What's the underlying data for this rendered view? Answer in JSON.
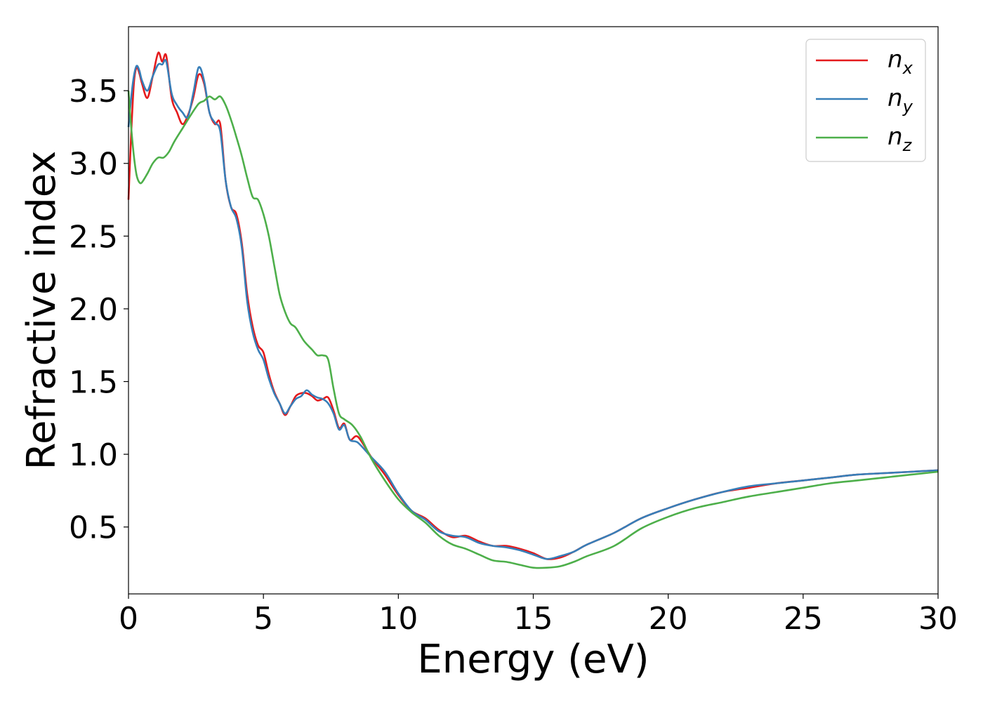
{
  "chart_data": {
    "type": "line",
    "xlabel": "Energy (eV)",
    "ylabel": "Refractive index",
    "xlim": [
      0,
      30
    ],
    "ylim": [
      0.04,
      3.94
    ],
    "xticks": [
      0,
      5,
      10,
      15,
      20,
      25,
      30
    ],
    "xtick_labels": [
      "0",
      "5",
      "10",
      "15",
      "20",
      "25",
      "30"
    ],
    "yticks": [
      0.5,
      1.0,
      1.5,
      2.0,
      2.5,
      3.0,
      3.5
    ],
    "ytick_labels": [
      "0.5",
      "1.0",
      "1.5",
      "2.0",
      "2.5",
      "3.0",
      "3.5"
    ],
    "grid": false,
    "legend_position": "top-right",
    "series": [
      {
        "name": "n_x",
        "label_main": "n",
        "label_sub": "x",
        "color": "#e41a1c",
        "x": [
          0,
          0.1,
          0.2,
          0.3,
          0.4,
          0.5,
          0.7,
          0.9,
          1.1,
          1.25,
          1.4,
          1.6,
          1.8,
          2.0,
          2.2,
          2.4,
          2.6,
          2.8,
          3.0,
          3.2,
          3.4,
          3.6,
          3.8,
          4.0,
          4.2,
          4.4,
          4.6,
          4.8,
          5.0,
          5.2,
          5.4,
          5.6,
          5.8,
          6.0,
          6.2,
          6.4,
          6.6,
          6.8,
          7.0,
          7.2,
          7.4,
          7.6,
          7.8,
          8.0,
          8.2,
          8.5,
          9.0,
          9.5,
          10.0,
          10.5,
          11.0,
          11.5,
          12.0,
          12.5,
          13.0,
          13.5,
          14.0,
          14.5,
          15.0,
          15.5,
          16.0,
          16.5,
          17.0,
          18.0,
          19.0,
          20.0,
          21.0,
          22.0,
          23.0,
          24.0,
          25.0,
          26.0,
          27.0,
          28.0,
          29.0,
          30.0
        ],
        "y": [
          2.75,
          3.2,
          3.55,
          3.66,
          3.62,
          3.55,
          3.45,
          3.6,
          3.76,
          3.7,
          3.74,
          3.45,
          3.35,
          3.27,
          3.33,
          3.45,
          3.61,
          3.55,
          3.35,
          3.27,
          3.27,
          2.88,
          2.7,
          2.65,
          2.45,
          2.1,
          1.88,
          1.75,
          1.7,
          1.55,
          1.43,
          1.35,
          1.27,
          1.33,
          1.4,
          1.42,
          1.42,
          1.4,
          1.37,
          1.38,
          1.39,
          1.3,
          1.18,
          1.21,
          1.1,
          1.12,
          0.98,
          0.86,
          0.72,
          0.61,
          0.56,
          0.48,
          0.43,
          0.44,
          0.4,
          0.37,
          0.37,
          0.35,
          0.32,
          0.28,
          0.29,
          0.33,
          0.38,
          0.46,
          0.56,
          0.63,
          0.69,
          0.74,
          0.77,
          0.8,
          0.82,
          0.84,
          0.86,
          0.87,
          0.88,
          0.89
        ]
      },
      {
        "name": "n_y",
        "label_main": "n",
        "label_sub": "y",
        "color": "#377eb8",
        "x": [
          0,
          0.1,
          0.2,
          0.3,
          0.4,
          0.5,
          0.7,
          0.9,
          1.1,
          1.25,
          1.4,
          1.6,
          1.8,
          2.0,
          2.2,
          2.4,
          2.6,
          2.8,
          3.0,
          3.2,
          3.4,
          3.6,
          3.8,
          4.0,
          4.2,
          4.4,
          4.6,
          4.8,
          5.0,
          5.2,
          5.4,
          5.6,
          5.8,
          6.0,
          6.2,
          6.4,
          6.6,
          6.8,
          7.0,
          7.2,
          7.4,
          7.6,
          7.8,
          8.0,
          8.2,
          8.5,
          9.0,
          9.5,
          10.0,
          10.5,
          11.0,
          11.5,
          12.0,
          12.5,
          13.0,
          13.5,
          14.0,
          14.5,
          15.0,
          15.5,
          16.0,
          16.5,
          17.0,
          18.0,
          19.0,
          20.0,
          21.0,
          22.0,
          23.0,
          24.0,
          25.0,
          26.0,
          27.0,
          28.0,
          29.0,
          30.0
        ],
        "y": [
          3.25,
          3.45,
          3.6,
          3.67,
          3.64,
          3.57,
          3.5,
          3.6,
          3.68,
          3.68,
          3.7,
          3.48,
          3.4,
          3.35,
          3.32,
          3.48,
          3.66,
          3.57,
          3.35,
          3.28,
          3.22,
          2.88,
          2.7,
          2.62,
          2.42,
          2.05,
          1.84,
          1.72,
          1.65,
          1.52,
          1.42,
          1.35,
          1.28,
          1.33,
          1.38,
          1.4,
          1.44,
          1.41,
          1.39,
          1.38,
          1.35,
          1.28,
          1.17,
          1.2,
          1.1,
          1.08,
          0.98,
          0.88,
          0.73,
          0.61,
          0.55,
          0.47,
          0.44,
          0.43,
          0.39,
          0.37,
          0.36,
          0.34,
          0.31,
          0.28,
          0.3,
          0.33,
          0.38,
          0.46,
          0.56,
          0.63,
          0.69,
          0.74,
          0.78,
          0.8,
          0.82,
          0.84,
          0.86,
          0.87,
          0.88,
          0.89
        ]
      },
      {
        "name": "n_z",
        "label_main": "n",
        "label_sub": "z",
        "color": "#4daf4a",
        "x": [
          0,
          0.1,
          0.2,
          0.3,
          0.4,
          0.5,
          0.7,
          0.9,
          1.1,
          1.3,
          1.5,
          1.7,
          2.0,
          2.3,
          2.6,
          2.8,
          3.0,
          3.2,
          3.4,
          3.6,
          3.8,
          4.0,
          4.2,
          4.4,
          4.6,
          4.8,
          5.0,
          5.2,
          5.4,
          5.6,
          5.8,
          6.0,
          6.2,
          6.5,
          6.8,
          7.0,
          7.2,
          7.4,
          7.6,
          7.8,
          8.0,
          8.3,
          8.6,
          9.0,
          9.5,
          10.0,
          10.5,
          11.0,
          11.5,
          12.0,
          12.5,
          13.0,
          13.5,
          14.0,
          14.5,
          15.0,
          15.5,
          16.0,
          16.5,
          17.0,
          18.0,
          19.0,
          20.0,
          21.0,
          22.0,
          23.0,
          24.0,
          25.0,
          26.0,
          27.0,
          28.0,
          29.0,
          30.0
        ],
        "y": [
          3.5,
          3.25,
          3.05,
          2.92,
          2.87,
          2.87,
          2.93,
          3.0,
          3.04,
          3.04,
          3.08,
          3.15,
          3.24,
          3.33,
          3.41,
          3.43,
          3.46,
          3.44,
          3.46,
          3.4,
          3.3,
          3.18,
          3.05,
          2.9,
          2.77,
          2.75,
          2.65,
          2.5,
          2.3,
          2.1,
          1.98,
          1.9,
          1.87,
          1.78,
          1.72,
          1.68,
          1.68,
          1.65,
          1.45,
          1.28,
          1.24,
          1.2,
          1.12,
          0.97,
          0.82,
          0.69,
          0.6,
          0.53,
          0.44,
          0.38,
          0.35,
          0.31,
          0.27,
          0.26,
          0.24,
          0.22,
          0.22,
          0.23,
          0.26,
          0.3,
          0.37,
          0.49,
          0.57,
          0.63,
          0.67,
          0.71,
          0.74,
          0.77,
          0.8,
          0.82,
          0.84,
          0.86,
          0.88
        ]
      }
    ]
  }
}
